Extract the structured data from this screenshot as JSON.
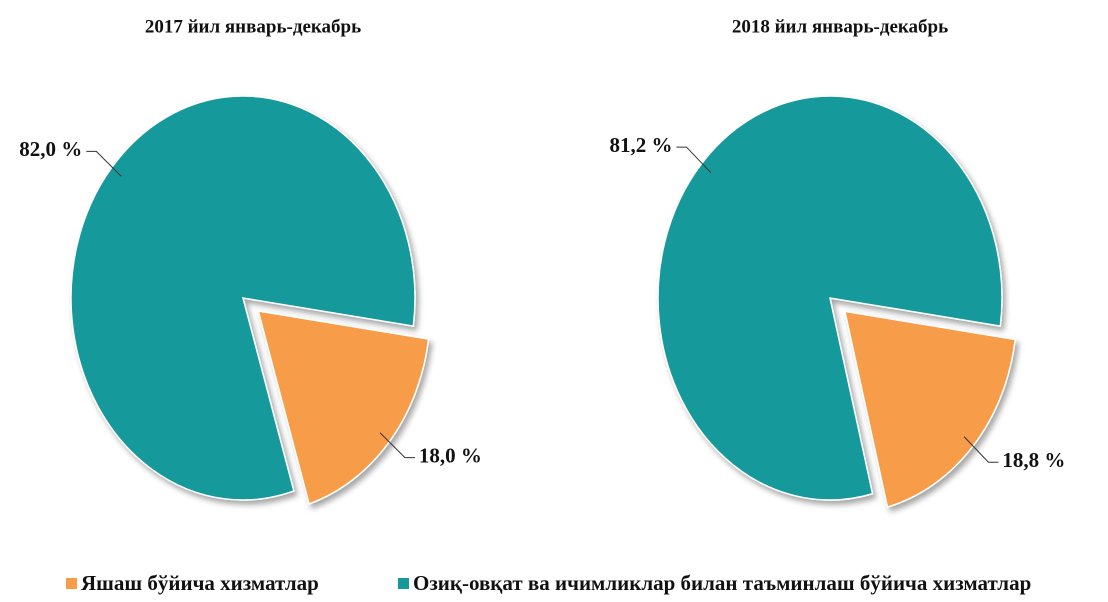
{
  "chart_data": [
    {
      "type": "pie",
      "title": "2017 йил январь-декабрь",
      "values": [
        18.0,
        82.0
      ],
      "value_labels": [
        "18,0 %",
        "82,0 %"
      ]
    },
    {
      "type": "pie",
      "title": "2018 йил январь-декабрь",
      "values": [
        18.8,
        81.2
      ],
      "value_labels": [
        "18,8 %",
        "81,2 %"
      ]
    }
  ],
  "legend": {
    "labels": [
      "Яшаш бўйича хизматлар",
      "Озиқ-овқат ва ичимликлар билан таъминлаш бўйича хизматлар"
    ],
    "colors": [
      "#f79c48",
      "#17999a"
    ]
  }
}
